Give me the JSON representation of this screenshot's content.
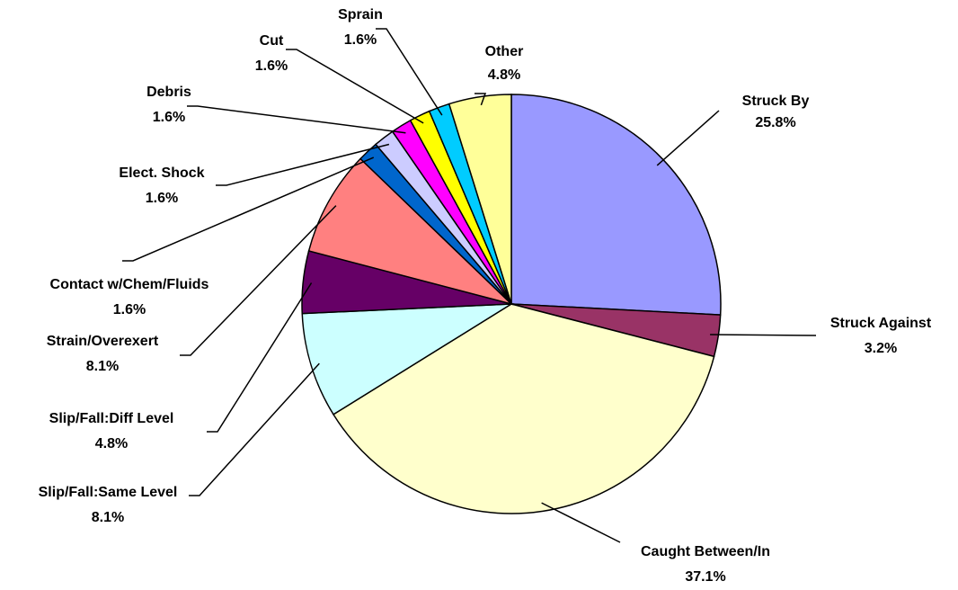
{
  "chart_data": {
    "type": "pie",
    "categories": [
      "Struck By",
      "Struck Against",
      "Caught Between/In",
      "Slip/Fall:Same Level",
      "Slip/Fall:Diff Level",
      "Strain/Overexert",
      "Contact w/Chem/Fluids",
      "Elect. Shock",
      "Debris",
      "Cut",
      "Sprain",
      "Other"
    ],
    "values": [
      25.8,
      3.2,
      37.1,
      8.1,
      4.8,
      8.1,
      1.6,
      1.6,
      1.6,
      1.6,
      1.6,
      4.8
    ],
    "value_labels": [
      "25.8%",
      "3.2%",
      "37.1%",
      "8.1%",
      "4.8%",
      "8.1%",
      "1.6%",
      "1.6%",
      "1.6%",
      "1.6%",
      "1.6%",
      "4.8%"
    ],
    "colors": [
      "#9999ff",
      "#993366",
      "#ffffcc",
      "#ccffff",
      "#660066",
      "#ff8080",
      "#0066cc",
      "#ccccff",
      "#ff00ff",
      "#ffff00",
      "#00ccff",
      "#ffff99"
    ]
  }
}
